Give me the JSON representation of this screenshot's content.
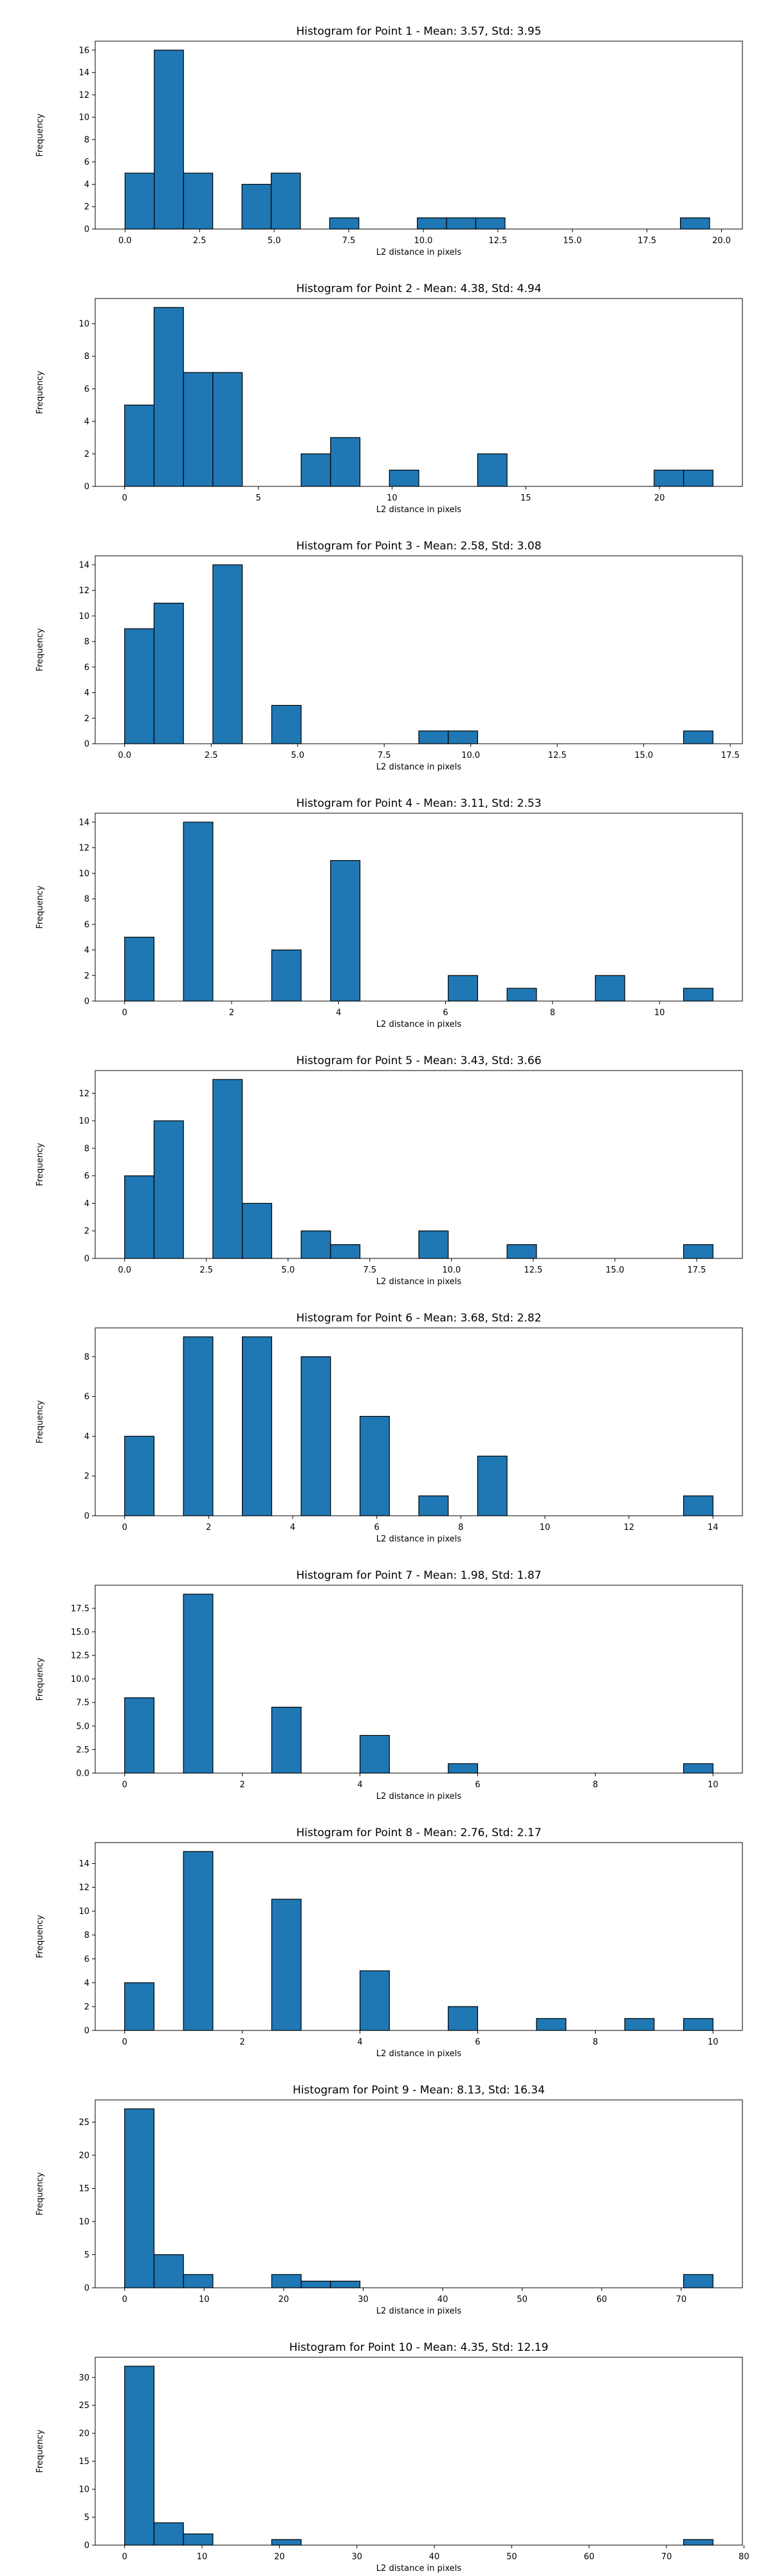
{
  "chart_data": [
    {
      "type": "bar",
      "title": "Histogram for Point 1 - Mean: 3.57, Std: 3.95",
      "xlabel": "L2 distance in pixels",
      "ylabel": "Frequency",
      "xlim": [
        -1.0,
        20.7
      ],
      "ylim": [
        0,
        16.8
      ],
      "xticks": [
        0.0,
        2.5,
        5.0,
        7.5,
        10.0,
        12.5,
        15.0,
        17.5,
        20.0
      ],
      "xtick_labels": [
        "0.0",
        "2.5",
        "5.0",
        "7.5",
        "10.0",
        "12.5",
        "15.0",
        "17.5",
        "20.0"
      ],
      "yticks": [
        0,
        2,
        4,
        6,
        8,
        10,
        12,
        14,
        16
      ],
      "ytick_labels": [
        "0",
        "2",
        "4",
        "6",
        "8",
        "10",
        "12",
        "14",
        "16"
      ],
      "bin_edges": [
        0.0,
        0.98,
        1.96,
        2.94,
        3.92,
        4.9,
        5.88,
        6.86,
        7.84,
        8.82,
        9.8,
        10.78,
        11.76,
        12.74,
        13.72,
        14.7,
        15.68,
        16.66,
        17.64,
        18.62,
        19.6
      ],
      "values": [
        5,
        16,
        5,
        0,
        4,
        5,
        0,
        1,
        0,
        0,
        1,
        1,
        1,
        0,
        0,
        0,
        0,
        0,
        0,
        1
      ],
      "color": "#1f77b4",
      "edgecolor": "#000000",
      "grid": false
    },
    {
      "type": "bar",
      "title": "Histogram for Point 2 - Mean: 4.38, Std: 4.94",
      "xlabel": "L2 distance in pixels",
      "ylabel": "Frequency",
      "xlim": [
        -1.1,
        23.1
      ],
      "ylim": [
        0,
        11.55
      ],
      "xticks": [
        0,
        5,
        10,
        15,
        20
      ],
      "xtick_labels": [
        "0",
        "5",
        "10",
        "15",
        "20"
      ],
      "yticks": [
        0,
        2,
        4,
        6,
        8,
        10
      ],
      "ytick_labels": [
        "0",
        "2",
        "4",
        "6",
        "8",
        "10"
      ],
      "bin_edges": [
        0.0,
        1.1,
        2.2,
        3.3,
        4.4,
        5.5,
        6.6,
        7.7,
        8.8,
        9.9,
        11.0,
        12.1,
        13.2,
        14.3,
        15.4,
        16.5,
        17.6,
        18.7,
        19.8,
        20.9,
        22.0
      ],
      "values": [
        5,
        11,
        7,
        7,
        0,
        0,
        2,
        3,
        0,
        1,
        0,
        0,
        2,
        0,
        0,
        0,
        0,
        0,
        1,
        1
      ],
      "color": "#1f77b4",
      "edgecolor": "#000000",
      "grid": false
    },
    {
      "type": "bar",
      "title": "Histogram for Point 3 - Mean: 2.58, Std: 3.08",
      "xlabel": "L2 distance in pixels",
      "ylabel": "Frequency",
      "xlim": [
        -0.85,
        17.85
      ],
      "ylim": [
        0,
        14.7
      ],
      "xticks": [
        0.0,
        2.5,
        5.0,
        7.5,
        10.0,
        12.5,
        15.0,
        17.5
      ],
      "xtick_labels": [
        "0.0",
        "2.5",
        "5.0",
        "7.5",
        "10.0",
        "12.5",
        "15.0",
        "17.5"
      ],
      "yticks": [
        0,
        2,
        4,
        6,
        8,
        10,
        12,
        14
      ],
      "ytick_labels": [
        "0",
        "2",
        "4",
        "6",
        "8",
        "10",
        "12",
        "14"
      ],
      "bin_edges": [
        0.0,
        0.85,
        1.7,
        2.55,
        3.4,
        4.25,
        5.1,
        5.95,
        6.8,
        7.65,
        8.5,
        9.35,
        10.2,
        11.05,
        11.9,
        12.75,
        13.6,
        14.45,
        15.3,
        16.15,
        17.0
      ],
      "values": [
        9,
        11,
        0,
        14,
        0,
        3,
        0,
        0,
        0,
        0,
        1,
        1,
        0,
        0,
        0,
        0,
        0,
        0,
        0,
        1
      ],
      "color": "#1f77b4",
      "edgecolor": "#000000",
      "grid": false
    },
    {
      "type": "bar",
      "title": "Histogram for Point 4 - Mean: 3.11, Std: 2.53",
      "xlabel": "L2 distance in pixels",
      "ylabel": "Frequency",
      "xlim": [
        -0.55,
        11.55
      ],
      "ylim": [
        0,
        14.7
      ],
      "xticks": [
        0,
        2,
        4,
        6,
        8,
        10
      ],
      "xtick_labels": [
        "0",
        "2",
        "4",
        "6",
        "8",
        "10"
      ],
      "yticks": [
        0,
        2,
        4,
        6,
        8,
        10,
        12,
        14
      ],
      "ytick_labels": [
        "0",
        "2",
        "4",
        "6",
        "8",
        "10",
        "12",
        "14"
      ],
      "bin_edges": [
        0.0,
        0.55,
        1.1,
        1.65,
        2.2,
        2.75,
        3.3,
        3.85,
        4.4,
        4.95,
        5.5,
        6.05,
        6.6,
        7.15,
        7.7,
        8.25,
        8.8,
        9.35,
        9.9,
        10.45,
        11.0
      ],
      "values": [
        5,
        0,
        14,
        0,
        0,
        4,
        0,
        11,
        0,
        0,
        0,
        2,
        0,
        1,
        0,
        0,
        2,
        0,
        0,
        1
      ],
      "color": "#1f77b4",
      "edgecolor": "#000000",
      "grid": false
    },
    {
      "type": "bar",
      "title": "Histogram for Point 5 - Mean: 3.43, Std: 3.66",
      "xlabel": "L2 distance in pixels",
      "ylabel": "Frequency",
      "xlim": [
        -0.9,
        18.9
      ],
      "ylim": [
        0,
        13.65
      ],
      "xticks": [
        0.0,
        2.5,
        5.0,
        7.5,
        10.0,
        12.5,
        15.0,
        17.5
      ],
      "xtick_labels": [
        "0.0",
        "2.5",
        "5.0",
        "7.5",
        "10.0",
        "12.5",
        "15.0",
        "17.5"
      ],
      "yticks": [
        0,
        2,
        4,
        6,
        8,
        10,
        12
      ],
      "ytick_labels": [
        "0",
        "2",
        "4",
        "6",
        "8",
        "10",
        "12"
      ],
      "bin_edges": [
        0.0,
        0.9,
        1.8,
        2.7,
        3.6,
        4.5,
        5.4,
        6.3,
        7.2,
        8.1,
        9.0,
        9.9,
        10.8,
        11.7,
        12.6,
        13.5,
        14.4,
        15.3,
        16.2,
        17.1,
        18.0
      ],
      "values": [
        6,
        10,
        0,
        13,
        4,
        0,
        2,
        1,
        0,
        0,
        2,
        0,
        0,
        1,
        0,
        0,
        0,
        0,
        0,
        1
      ],
      "color": "#1f77b4",
      "edgecolor": "#000000",
      "grid": false
    },
    {
      "type": "bar",
      "title": "Histogram for Point 6 - Mean: 3.68, Std: 2.82",
      "xlabel": "L2 distance in pixels",
      "ylabel": "Frequency",
      "xlim": [
        -0.7,
        14.7
      ],
      "ylim": [
        0,
        9.45
      ],
      "xticks": [
        0,
        2,
        4,
        6,
        8,
        10,
        12,
        14
      ],
      "xtick_labels": [
        "0",
        "2",
        "4",
        "6",
        "8",
        "10",
        "12",
        "14"
      ],
      "yticks": [
        0,
        2,
        4,
        6,
        8
      ],
      "ytick_labels": [
        "0",
        "2",
        "4",
        "6",
        "8"
      ],
      "bin_edges": [
        0.0,
        0.7,
        1.4,
        2.1,
        2.8,
        3.5,
        4.2,
        4.9,
        5.6,
        6.3,
        7.0,
        7.7,
        8.4,
        9.1,
        9.8,
        10.5,
        11.2,
        11.9,
        12.6,
        13.3,
        14.0
      ],
      "values": [
        4,
        0,
        9,
        0,
        9,
        0,
        8,
        0,
        5,
        0,
        1,
        0,
        3,
        0,
        0,
        0,
        0,
        0,
        0,
        1
      ],
      "color": "#1f77b4",
      "edgecolor": "#000000",
      "grid": false
    },
    {
      "type": "bar",
      "title": "Histogram for Point 7 - Mean: 1.98, Std: 1.87",
      "xlabel": "L2 distance in pixels",
      "ylabel": "Frequency",
      "xlim": [
        -0.5,
        10.5
      ],
      "ylim": [
        0,
        19.95
      ],
      "xticks": [
        0,
        2,
        4,
        6,
        8,
        10
      ],
      "xtick_labels": [
        "0",
        "2",
        "4",
        "6",
        "8",
        "10"
      ],
      "yticks": [
        0.0,
        2.5,
        5.0,
        7.5,
        10.0,
        12.5,
        15.0,
        17.5
      ],
      "ytick_labels": [
        "0.0",
        "2.5",
        "5.0",
        "7.5",
        "10.0",
        "12.5",
        "15.0",
        "17.5"
      ],
      "bin_edges": [
        0.0,
        0.5,
        1.0,
        1.5,
        2.0,
        2.5,
        3.0,
        3.5,
        4.0,
        4.5,
        5.0,
        5.5,
        6.0,
        6.5,
        7.0,
        7.5,
        8.0,
        8.5,
        9.0,
        9.5,
        10.0
      ],
      "values": [
        8,
        0,
        19,
        0,
        0,
        7,
        0,
        0,
        4,
        0,
        0,
        1,
        0,
        0,
        0,
        0,
        0,
        0,
        0,
        1
      ],
      "color": "#1f77b4",
      "edgecolor": "#000000",
      "grid": false
    },
    {
      "type": "bar",
      "title": "Histogram for Point 8 - Mean: 2.76, Std: 2.17",
      "xlabel": "L2 distance in pixels",
      "ylabel": "Frequency",
      "xlim": [
        -0.5,
        10.5
      ],
      "ylim": [
        0,
        15.75
      ],
      "xticks": [
        0,
        2,
        4,
        6,
        8,
        10
      ],
      "xtick_labels": [
        "0",
        "2",
        "4",
        "6",
        "8",
        "10"
      ],
      "yticks": [
        0,
        2,
        4,
        6,
        8,
        10,
        12,
        14
      ],
      "ytick_labels": [
        "0",
        "2",
        "4",
        "6",
        "8",
        "10",
        "12",
        "14"
      ],
      "bin_edges": [
        0.0,
        0.5,
        1.0,
        1.5,
        2.0,
        2.5,
        3.0,
        3.5,
        4.0,
        4.5,
        5.0,
        5.5,
        6.0,
        6.5,
        7.0,
        7.5,
        8.0,
        8.5,
        9.0,
        9.5,
        10.0
      ],
      "values": [
        4,
        0,
        15,
        0,
        0,
        11,
        0,
        0,
        5,
        0,
        0,
        2,
        0,
        0,
        1,
        0,
        0,
        1,
        0,
        1
      ],
      "color": "#1f77b4",
      "edgecolor": "#000000",
      "grid": false
    },
    {
      "type": "bar",
      "title": "Histogram for Point 9 - Mean: 8.13, Std: 16.34",
      "xlabel": "L2 distance in pixels",
      "ylabel": "Frequency",
      "xlim": [
        -3.7,
        77.7
      ],
      "ylim": [
        0,
        28.35
      ],
      "xticks": [
        0,
        10,
        20,
        30,
        40,
        50,
        60,
        70
      ],
      "xtick_labels": [
        "0",
        "10",
        "20",
        "30",
        "40",
        "50",
        "60",
        "70"
      ],
      "yticks": [
        0,
        5,
        10,
        15,
        20,
        25
      ],
      "ytick_labels": [
        "0",
        "5",
        "10",
        "15",
        "20",
        "25"
      ],
      "bin_edges": [
        0.0,
        3.7,
        7.4,
        11.1,
        14.8,
        18.5,
        22.2,
        25.9,
        29.6,
        33.3,
        37.0,
        40.7,
        44.4,
        48.1,
        51.8,
        55.5,
        59.2,
        62.9,
        66.6,
        70.3,
        74.0
      ],
      "values": [
        27,
        5,
        2,
        0,
        0,
        2,
        1,
        1,
        0,
        0,
        0,
        0,
        0,
        0,
        0,
        0,
        0,
        0,
        0,
        2
      ],
      "color": "#1f77b4",
      "edgecolor": "#000000",
      "grid": false
    },
    {
      "type": "bar",
      "title": "Histogram for Point 10 - Mean: 4.35, Std: 12.19",
      "xlabel": "L2 distance in pixels",
      "ylabel": "Frequency",
      "xlim": [
        -3.8,
        79.8
      ],
      "ylim": [
        0,
        33.6
      ],
      "xticks": [
        0,
        10,
        20,
        30,
        40,
        50,
        60,
        70,
        80
      ],
      "xtick_labels": [
        "0",
        "10",
        "20",
        "30",
        "40",
        "50",
        "60",
        "70",
        "80"
      ],
      "yticks": [
        0,
        5,
        10,
        15,
        20,
        25,
        30
      ],
      "ytick_labels": [
        "0",
        "5",
        "10",
        "15",
        "20",
        "25",
        "30"
      ],
      "bin_edges": [
        0.0,
        3.8,
        7.6,
        11.4,
        15.2,
        19.0,
        22.8,
        26.6,
        30.4,
        34.2,
        38.0,
        41.8,
        45.6,
        49.4,
        53.2,
        57.0,
        60.8,
        64.6,
        68.4,
        72.2,
        76.0
      ],
      "values": [
        32,
        4,
        2,
        0,
        0,
        1,
        0,
        0,
        0,
        0,
        0,
        0,
        0,
        0,
        0,
        0,
        0,
        0,
        0,
        1
      ],
      "color": "#1f77b4",
      "edgecolor": "#000000",
      "grid": false
    }
  ]
}
